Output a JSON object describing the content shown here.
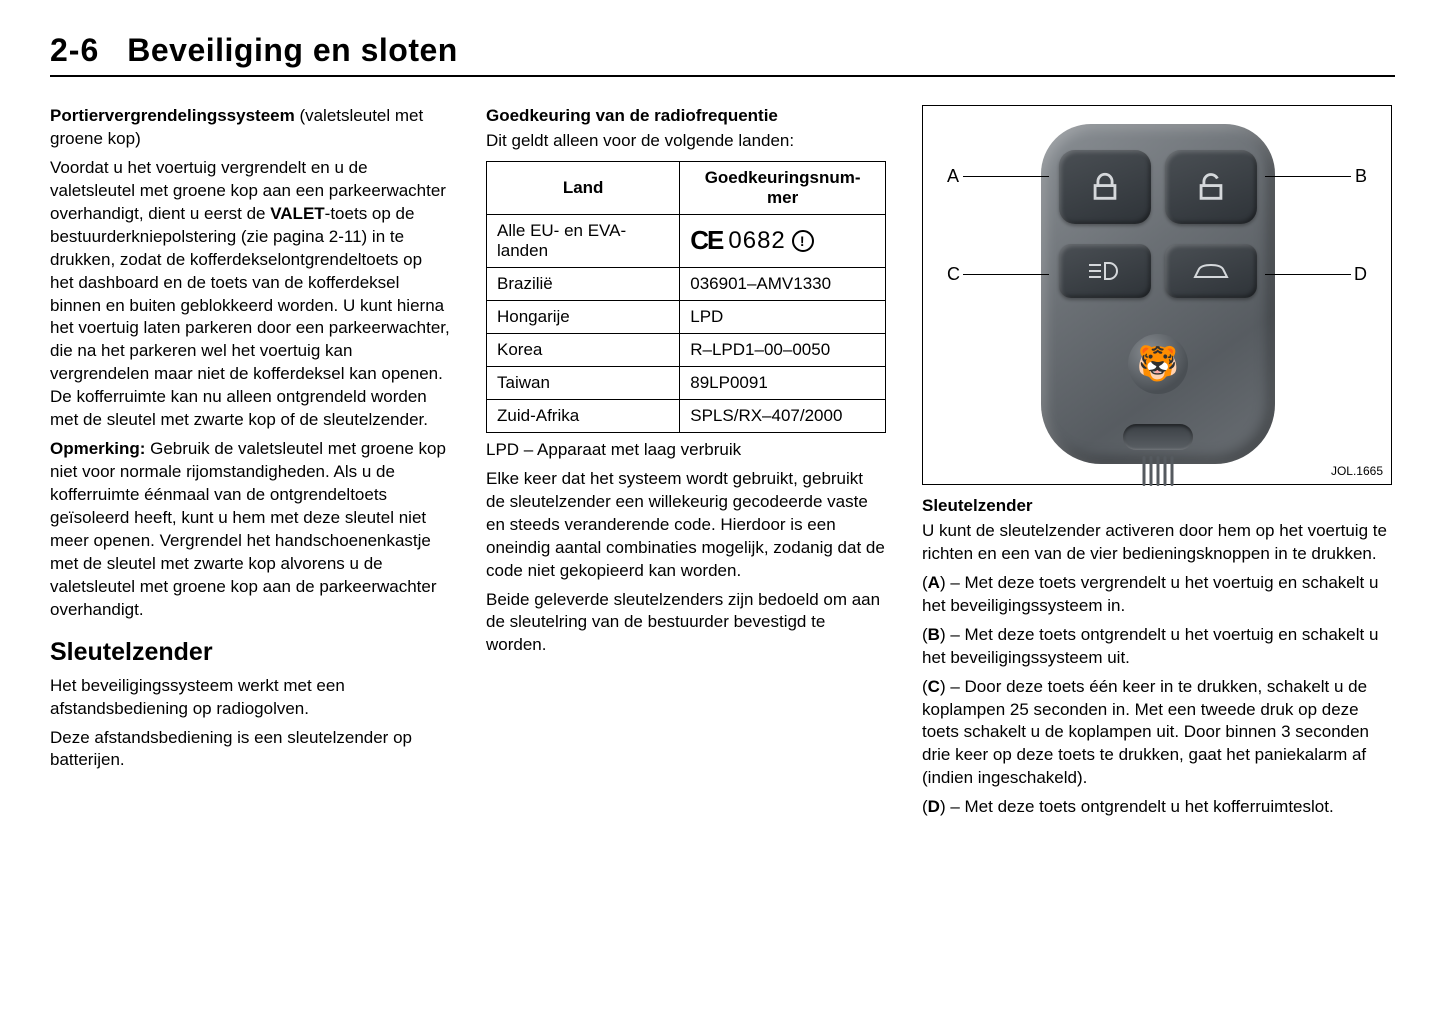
{
  "header": {
    "page_num": "2-6",
    "title": "Beveiliging en sloten"
  },
  "col1": {
    "h1_bold": "Portiervergrendelingssysteem",
    "h1_rest": " (valetsleutel met groene kop)",
    "p1a": "Voordat u het voertuig vergrendelt en u de valetsleutel met groene kop aan een parkeerwachter overhandigt, dient u eerst de ",
    "p1_valet": "VALET",
    "p1b": "-toets op de bestuurderkniepolstering (zie pagina 2-11) in te drukken, zodat de kofferdekselontgrendeltoets op het dashboard en de toets van de kofferdeksel binnen en buiten geblokkeerd worden. U kunt hierna het voertuig laten parkeren door een parkeerwachter, die na het parkeren wel het voertuig kan vergrendelen maar niet de kofferdeksel kan openen. De kofferruimte kan nu alleen ontgrendeld worden met de sleutel met zwarte kop of de sleutelzender.",
    "p2_bold": "Opmerking:",
    "p2": " Gebruik de valetsleutel met groene kop niet voor normale rijomstandigheden. Als u de kofferruimte éénmaal van de ontgrendeltoets geïsoleerd heeft, kunt u hem met deze sleutel niet meer openen. Vergrendel het handschoenenkastje met de sleutel met zwarte kop alvorens u de valetsleutel met groene kop aan de parkeerwachter overhandigt.",
    "section": "Sleutelzender",
    "p3": "Het beveiligingssysteem werkt met een afstandsbediening op radiogolven.",
    "p4": "Deze afstandsbediening is een sleutelzender op batterijen."
  },
  "col2": {
    "h": "Goedkeuring van de radiofrequentie",
    "sub": "Dit geldt alleen voor de volgende landen:",
    "th1": "Land",
    "th2": "Goedkeuringsnum-mer",
    "rows": [
      {
        "land": "Alle EU- en EVA-landen",
        "num": "0682",
        "ce": true
      },
      {
        "land": "Brazilië",
        "num": "036901–AMV1330"
      },
      {
        "land": "Hongarije",
        "num": "LPD"
      },
      {
        "land": "Korea",
        "num": "R–LPD1–00–0050"
      },
      {
        "land": "Taiwan",
        "num": "89LP0091"
      },
      {
        "land": "Zuid-Afrika",
        "num": "SPLS/RX–407/2000"
      }
    ],
    "lpd": "LPD – Apparaat met laag verbruik",
    "p1": "Elke keer dat het systeem wordt gebruikt, gebruikt de sleutelzender een willekeurig gecodeerde vaste en steeds veranderende code. Hierdoor is een oneindig aantal combinaties mogelijk, zodanig dat de code niet gekopieerd kan worden.",
    "p2": "Beide geleverde sleutelzenders zijn bedoeld om aan de sleutelring van de bestuurder bevestigd te worden."
  },
  "col3": {
    "fig_caption": "JOL.1665",
    "labels": {
      "A": "A",
      "B": "B",
      "C": "C",
      "D": "D"
    },
    "h": "Sleutelzender",
    "p1": "U kunt de sleutelzender activeren door hem op het voertuig te richten en een van de vier bedieningsknoppen in te drukken.",
    "items": [
      {
        "k": "A",
        "t": " – Met deze toets vergrendelt u het voertuig en schakelt u het beveiligingssysteem in."
      },
      {
        "k": "B",
        "t": " – Met deze toets ontgrendelt u het voertuig en schakelt u het beveiligingssysteem uit."
      },
      {
        "k": "C",
        "t": " – Door deze toets één keer in te drukken, schakelt u de koplampen 25 seconden in. Met een tweede druk op deze toets schakelt u de koplampen uit. Door binnen 3 seconden drie keer op deze toets te drukken, gaat het paniekalarm af (indien ingeschakeld)."
      },
      {
        "k": "D",
        "t": " – Met deze toets ontgrendelt u het kofferruimteslot."
      }
    ]
  }
}
